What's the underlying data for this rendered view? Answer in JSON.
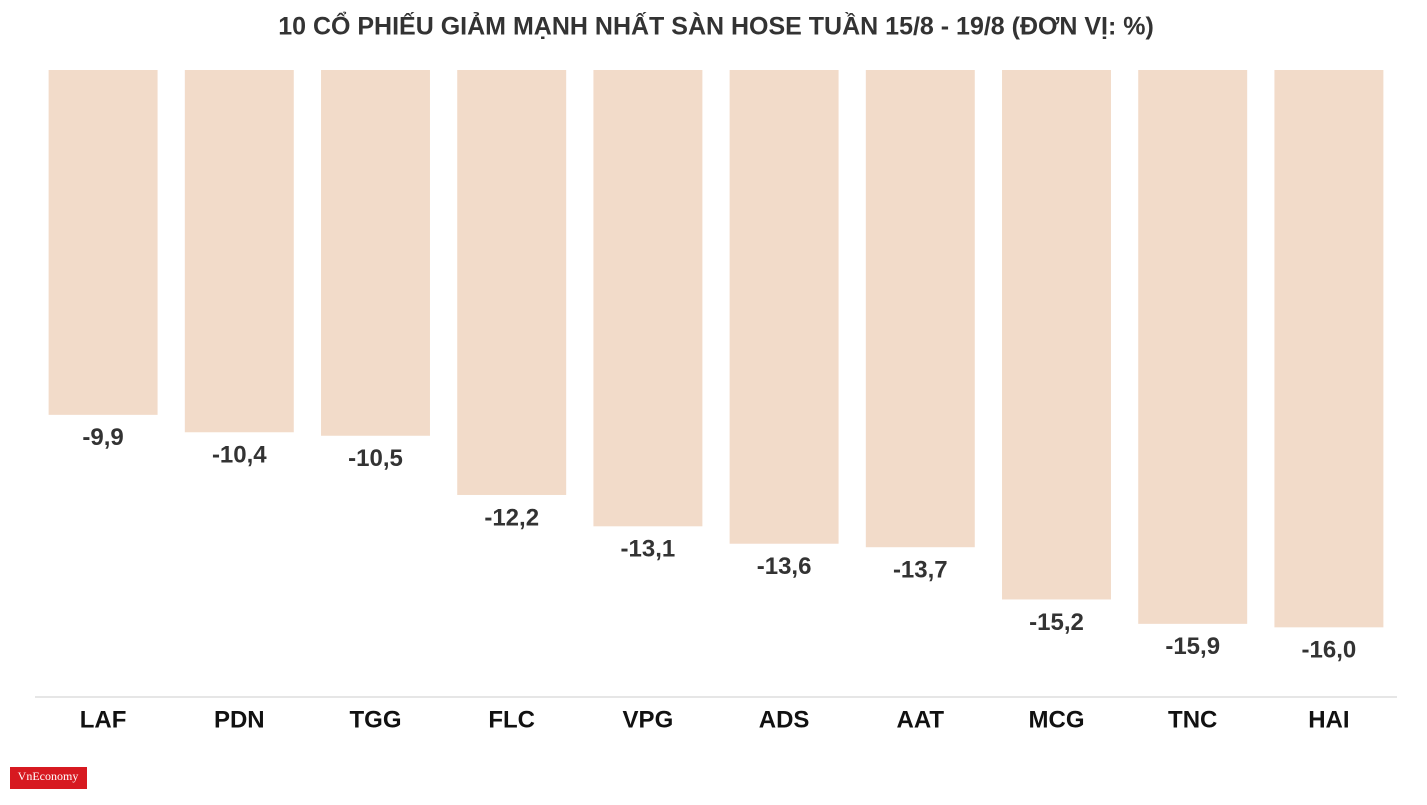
{
  "chart_data": {
    "type": "bar",
    "title": "10 CỔ PHIẾU GIẢM MẠNH NHẤT SÀN HOSE TUẦN 15/8 - 19/8 (ĐƠN VỊ: %)",
    "categories": [
      "LAF",
      "PDN",
      "TGG",
      "FLC",
      "VPG",
      "ADS",
      "AAT",
      "MCG",
      "TNC",
      "HAI"
    ],
    "values": [
      -9.9,
      -10.4,
      -10.5,
      -12.2,
      -13.1,
      -13.6,
      -13.7,
      -15.2,
      -15.9,
      -16.0
    ],
    "value_labels": [
      "-9,9",
      "-10,4",
      "-10,5",
      "-12,2",
      "-13,1",
      "-13,6",
      "-13,7",
      "-15,2",
      "-15,9",
      "-16,0"
    ],
    "color": "#f2dbc9",
    "ylim": [
      -18,
      0
    ],
    "source": "VnEconomy"
  }
}
